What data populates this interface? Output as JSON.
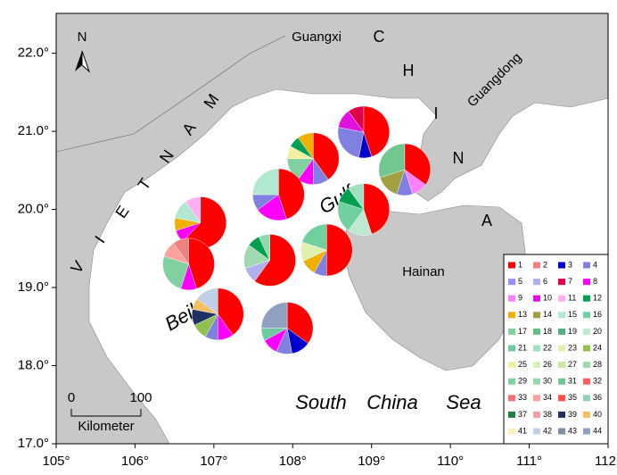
{
  "map": {
    "xticks": [
      {
        "value": 105,
        "label": "105°"
      },
      {
        "value": 106,
        "label": "106°"
      },
      {
        "value": 107,
        "label": "107°"
      },
      {
        "value": 108,
        "label": "108°"
      },
      {
        "value": 109,
        "label": "109°"
      },
      {
        "value": 110,
        "label": "110°"
      },
      {
        "value": 111,
        "label": "111°"
      },
      {
        "value": 112,
        "label": "112°"
      }
    ],
    "yticks": [
      {
        "value": 17,
        "label": "17.0°"
      },
      {
        "value": 18,
        "label": "18.0°"
      },
      {
        "value": 19,
        "label": "19.0°"
      },
      {
        "value": 20,
        "label": "20.0°"
      },
      {
        "value": 21,
        "label": "21.0°"
      },
      {
        "value": 22,
        "label": "22.0°"
      }
    ],
    "xlim": [
      105,
      112
    ],
    "ylim": [
      17,
      22.51
    ],
    "north": "N",
    "scale_bar": {
      "ticks": [
        0,
        100
      ],
      "unit": "Kilometer"
    },
    "labels": {
      "guangxi": "Guangxi",
      "guangdong": "Guangdong",
      "hainan": "Hainan",
      "gulf": "Gulf",
      "beibu": "Beibu",
      "south": "South",
      "china_sea": "China",
      "sea": "Sea"
    },
    "china_letters": [
      "C",
      "H",
      "I",
      "N",
      "A"
    ],
    "vietnam_letters": [
      "V",
      "I",
      "E",
      "T",
      "N",
      "A",
      "M"
    ],
    "legend": [
      {
        "label": 1,
        "color": "#ff0000"
      },
      {
        "label": 2,
        "color": "#f08080"
      },
      {
        "label": 3,
        "color": "#0000cd"
      },
      {
        "label": 4,
        "color": "#8080e0"
      },
      {
        "label": 5,
        "color": "#9090ff"
      },
      {
        "label": 6,
        "color": "#b0b0f0"
      },
      {
        "label": 7,
        "color": "#e0004a"
      },
      {
        "label": 8,
        "color": "#ff00ff"
      },
      {
        "label": 9,
        "color": "#ff80ff"
      },
      {
        "label": 10,
        "color": "#e010e0"
      },
      {
        "label": 11,
        "color": "#ffb0f0"
      },
      {
        "label": 12,
        "color": "#00a050"
      },
      {
        "label": 13,
        "color": "#f0b000"
      },
      {
        "label": 14,
        "color": "#a0a040"
      },
      {
        "label": 15,
        "color": "#b0e8d0"
      },
      {
        "label": 16,
        "color": "#70d0a0"
      },
      {
        "label": 17,
        "color": "#80d0a0"
      },
      {
        "label": 18,
        "color": "#60c080"
      },
      {
        "label": 19,
        "color": "#50b080"
      },
      {
        "label": 20,
        "color": "#c0e8d0"
      },
      {
        "label": 21,
        "color": "#70c8a0"
      },
      {
        "label": 22,
        "color": "#a0e0c0"
      },
      {
        "label": 23,
        "color": "#e0f0b0"
      },
      {
        "label": 24,
        "color": "#90c050"
      },
      {
        "label": 25,
        "color": "#f0f0a0"
      },
      {
        "label": 26,
        "color": "#d8f0c0"
      },
      {
        "label": 27,
        "color": "#c8e8a0"
      },
      {
        "label": 28,
        "color": "#a0d8b0"
      },
      {
        "label": 29,
        "color": "#80d0a0"
      },
      {
        "label": 30,
        "color": "#90d8b0"
      },
      {
        "label": 31,
        "color": "#70c890"
      },
      {
        "label": 32,
        "color": "#ff6060"
      },
      {
        "label": 33,
        "color": "#ff7070"
      },
      {
        "label": 34,
        "color": "#ffa0a0"
      },
      {
        "label": 35,
        "color": "#ff5050"
      },
      {
        "label": 36,
        "color": "#90d0c0"
      },
      {
        "label": 37,
        "color": "#208040"
      },
      {
        "label": 38,
        "color": "#f0a0a0"
      },
      {
        "label": 39,
        "color": "#203060"
      },
      {
        "label": 40,
        "color": "#f0c060"
      },
      {
        "label": 41,
        "color": "#fff0c0"
      },
      {
        "label": 42,
        "color": "#c0d0e8"
      },
      {
        "label": 43,
        "color": "#8090a0"
      },
      {
        "label": 44,
        "color": "#90a0c0"
      }
    ],
    "pies": [
      {
        "lon": 108.9,
        "lat": 20.99,
        "segments": [
          {
            "color": "#ff0000",
            "value": 45
          },
          {
            "color": "#0000cd",
            "value": 8
          },
          {
            "color": "#8080e0",
            "value": 25
          },
          {
            "color": "#e010e0",
            "value": 12
          },
          {
            "color": "#e0004a",
            "value": 10
          }
        ]
      },
      {
        "lon": 108.26,
        "lat": 20.65,
        "segments": [
          {
            "color": "#ff0000",
            "value": 40
          },
          {
            "color": "#8080e0",
            "value": 10
          },
          {
            "color": "#ff00ff",
            "value": 10
          },
          {
            "color": "#80d0a0",
            "value": 15
          },
          {
            "color": "#f0f0a0",
            "value": 8
          },
          {
            "color": "#00a050",
            "value": 7
          },
          {
            "color": "#f0b000",
            "value": 10
          }
        ]
      },
      {
        "lon": 109.42,
        "lat": 20.51,
        "segments": [
          {
            "color": "#ff0000",
            "value": 35
          },
          {
            "color": "#ff80ff",
            "value": 10
          },
          {
            "color": "#8080e0",
            "value": 10
          },
          {
            "color": "#a0a040",
            "value": 15
          },
          {
            "color": "#70c890",
            "value": 30
          }
        ]
      },
      {
        "lon": 107.82,
        "lat": 20.19,
        "segments": [
          {
            "color": "#ff0000",
            "value": 45
          },
          {
            "color": "#ff00ff",
            "value": 20
          },
          {
            "color": "#8080e0",
            "value": 10
          },
          {
            "color": "#b0e8d0",
            "value": 25
          }
        ]
      },
      {
        "lon": 108.9,
        "lat": 20.0,
        "segments": [
          {
            "color": "#ff0000",
            "value": 45
          },
          {
            "color": "#c0e8d0",
            "value": 15
          },
          {
            "color": "#70d0a0",
            "value": 20
          },
          {
            "color": "#00a050",
            "value": 10
          },
          {
            "color": "#a0e0c0",
            "value": 10
          }
        ]
      },
      {
        "lon": 106.83,
        "lat": 19.83,
        "segments": [
          {
            "color": "#ff0000",
            "value": 62
          },
          {
            "color": "#ff00ff",
            "value": 8
          },
          {
            "color": "#f0b000",
            "value": 8
          },
          {
            "color": "#b0e8d0",
            "value": 12
          },
          {
            "color": "#ffb0f0",
            "value": 10
          }
        ]
      },
      {
        "lon": 107.71,
        "lat": 19.35,
        "segments": [
          {
            "color": "#ff0000",
            "value": 60
          },
          {
            "color": "#b0b0f0",
            "value": 10
          },
          {
            "color": "#a0d8b0",
            "value": 15
          },
          {
            "color": "#00a050",
            "value": 8
          },
          {
            "color": "#90d8b0",
            "value": 7
          }
        ]
      },
      {
        "lon": 108.43,
        "lat": 19.48,
        "segments": [
          {
            "color": "#ff0000",
            "value": 50
          },
          {
            "color": "#8080e0",
            "value": 8
          },
          {
            "color": "#f0b000",
            "value": 10
          },
          {
            "color": "#e0f0b0",
            "value": 12
          },
          {
            "color": "#70d0a0",
            "value": 20
          }
        ]
      },
      {
        "lon": 106.68,
        "lat": 19.3,
        "segments": [
          {
            "color": "#ff0000",
            "value": 45
          },
          {
            "color": "#ff00ff",
            "value": 10
          },
          {
            "color": "#80d0a0",
            "value": 25
          },
          {
            "color": "#ffa0a0",
            "value": 10
          },
          {
            "color": "#f08080",
            "value": 10
          }
        ]
      },
      {
        "lon": 107.05,
        "lat": 18.66,
        "segments": [
          {
            "color": "#ff0000",
            "value": 40
          },
          {
            "color": "#ff00ff",
            "value": 10
          },
          {
            "color": "#8080e0",
            "value": 8
          },
          {
            "color": "#90c050",
            "value": 10
          },
          {
            "color": "#203060",
            "value": 10
          },
          {
            "color": "#f0c060",
            "value": 7
          },
          {
            "color": "#c0d0e8",
            "value": 15
          }
        ]
      },
      {
        "lon": 107.93,
        "lat": 18.48,
        "segments": [
          {
            "color": "#ff0000",
            "value": 35
          },
          {
            "color": "#0000cd",
            "value": 12
          },
          {
            "color": "#8080e0",
            "value": 10
          },
          {
            "color": "#ff00ff",
            "value": 10
          },
          {
            "color": "#70c8a0",
            "value": 8
          },
          {
            "color": "#90a0c0",
            "value": 25
          }
        ]
      }
    ]
  }
}
